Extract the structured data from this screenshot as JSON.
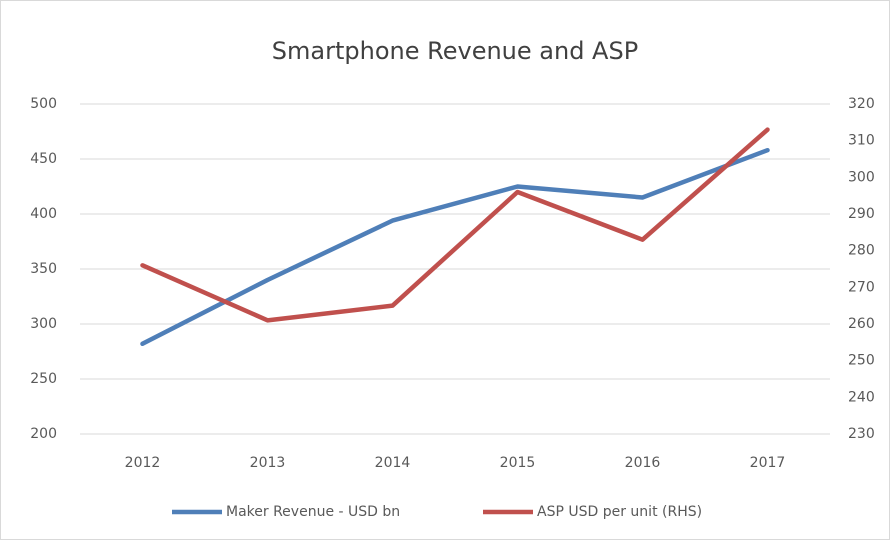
{
  "chart_data": {
    "type": "line",
    "title": "Smartphone Revenue and ASP",
    "categories": [
      "2012",
      "2013",
      "2014",
      "2015",
      "2016",
      "2017"
    ],
    "series": [
      {
        "name": "Maker Revenue - USD bn",
        "color": "#4f7fb8",
        "values": [
          282,
          340,
          394,
          425,
          415,
          458
        ]
      },
      {
        "name": "ASP USD per unit (RHS)",
        "color": "#c0504d",
        "axis": "y2",
        "values": [
          276,
          261,
          265,
          296,
          283,
          313
        ]
      }
    ],
    "ylim": [
      200,
      500
    ],
    "yticks": [
      200,
      250,
      300,
      350,
      400,
      450,
      500
    ],
    "y2lim": [
      230,
      320
    ],
    "y2ticks": [
      230,
      240,
      250,
      260,
      270,
      280,
      290,
      300,
      310,
      320
    ],
    "grid": true,
    "legend": "bottom"
  }
}
